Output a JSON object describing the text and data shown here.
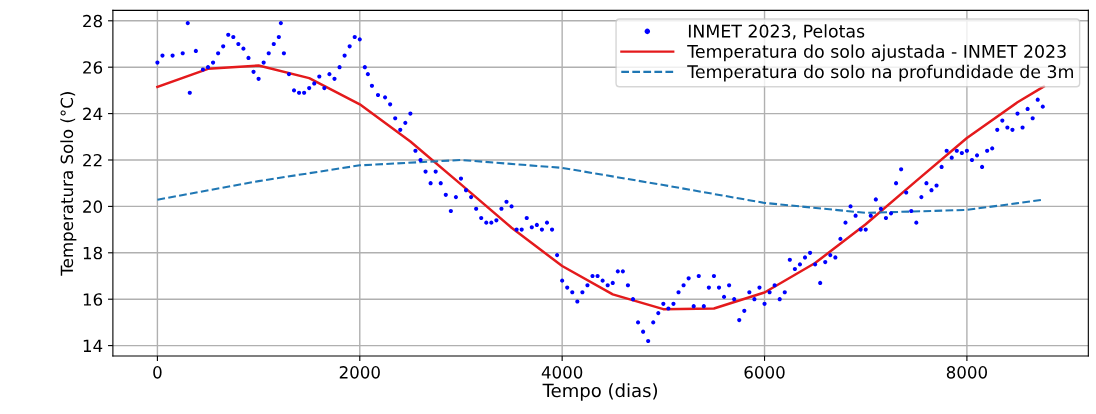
{
  "chart_data": {
    "type": "scatter",
    "xlabel": "Tempo (dias)",
    "ylabel": "Temperatura Solo (°C)",
    "xlim": [
      -440,
      9200
    ],
    "ylim": [
      13.55,
      28.45
    ],
    "xticks": [
      0,
      2000,
      4000,
      6000,
      8000
    ],
    "yticks": [
      14,
      16,
      18,
      20,
      22,
      24,
      26,
      28
    ],
    "grid": true,
    "legend": "top right",
    "series": [
      {
        "name": "INMET 2023, Pelotas",
        "color": "#0000ff",
        "marker": "circle",
        "x": [
          0,
          50,
          150,
          250,
          300,
          320,
          380,
          450,
          500,
          550,
          600,
          650,
          700,
          750,
          800,
          850,
          900,
          950,
          1000,
          1050,
          1100,
          1150,
          1200,
          1220,
          1250,
          1300,
          1350,
          1400,
          1450,
          1500,
          1550,
          1600,
          1650,
          1700,
          1750,
          1800,
          1850,
          1900,
          1950,
          2000,
          2050,
          2080,
          2120,
          2180,
          2250,
          2300,
          2350,
          2400,
          2450,
          2500,
          2550,
          2600,
          2650,
          2700,
          2750,
          2800,
          2850,
          2900,
          2950,
          3000,
          3050,
          3100,
          3150,
          3200,
          3250,
          3300,
          3350,
          3400,
          3450,
          3500,
          3550,
          3600,
          3650,
          3700,
          3750,
          3800,
          3850,
          3900,
          3950,
          4000,
          4050,
          4100,
          4150,
          4200,
          4250,
          4300,
          4350,
          4400,
          4450,
          4500,
          4550,
          4600,
          4650,
          4700,
          4750,
          4800,
          4850,
          4900,
          4950,
          5000,
          5050,
          5100,
          5150,
          5200,
          5250,
          5300,
          5350,
          5400,
          5450,
          5500,
          5550,
          5600,
          5650,
          5700,
          5750,
          5800,
          5850,
          5900,
          5950,
          6000,
          6050,
          6100,
          6150,
          6200,
          6250,
          6300,
          6350,
          6400,
          6450,
          6500,
          6550,
          6600,
          6650,
          6700,
          6750,
          6800,
          6850,
          6900,
          6950,
          7000,
          7050,
          7100,
          7150,
          7200,
          7250,
          7300,
          7350,
          7400,
          7450,
          7500,
          7550,
          7600,
          7650,
          7700,
          7750,
          7800,
          7850,
          7900,
          7950,
          8000,
          8050,
          8100,
          8150,
          8200,
          8250,
          8300,
          8350,
          8400,
          8450,
          8500,
          8550,
          8600,
          8650,
          8700,
          8750
        ],
        "values": [
          26.2,
          26.5,
          26.5,
          26.6,
          27.9,
          24.9,
          26.7,
          25.9,
          26.0,
          26.2,
          26.6,
          26.9,
          27.4,
          27.3,
          27.0,
          26.8,
          26.4,
          25.8,
          25.5,
          26.2,
          26.6,
          27.0,
          27.3,
          27.9,
          26.6,
          25.7,
          25.0,
          24.9,
          24.9,
          25.1,
          25.3,
          25.6,
          25.1,
          25.7,
          25.5,
          26.0,
          26.5,
          26.9,
          27.3,
          27.2,
          26.0,
          25.7,
          25.2,
          24.8,
          24.7,
          24.4,
          23.8,
          23.3,
          23.6,
          24.0,
          22.4,
          22.0,
          21.5,
          21.0,
          21.5,
          21.0,
          20.5,
          19.8,
          20.4,
          21.2,
          20.7,
          20.4,
          19.9,
          19.5,
          19.3,
          19.3,
          19.4,
          19.9,
          20.2,
          20.0,
          19.0,
          19.0,
          19.5,
          19.1,
          19.2,
          19.0,
          19.3,
          19.0,
          17.9,
          16.8,
          16.5,
          16.3,
          15.9,
          16.3,
          16.6,
          17.0,
          17.0,
          16.8,
          16.6,
          16.7,
          17.2,
          17.2,
          16.6,
          16.0,
          15.0,
          14.6,
          14.2,
          15.0,
          15.4,
          15.8,
          15.6,
          15.8,
          16.3,
          16.6,
          16.9,
          15.7,
          17.0,
          15.7,
          16.5,
          17.0,
          16.5,
          16.1,
          16.6,
          16.0,
          15.1,
          15.5,
          16.3,
          16.0,
          16.5,
          15.8,
          16.3,
          16.6,
          16.0,
          16.3,
          17.7,
          17.3,
          17.5,
          17.8,
          18.0,
          17.5,
          16.7,
          17.6,
          17.9,
          17.8,
          18.6,
          19.3,
          20.0,
          19.6,
          19.0,
          19.0,
          19.6,
          20.3,
          19.9,
          19.5,
          19.7,
          21.0,
          21.6,
          20.6,
          19.8,
          19.3,
          20.4,
          21.0,
          20.7,
          20.9,
          21.7,
          22.4,
          22.1,
          22.4,
          22.3,
          22.4,
          22.0,
          22.2,
          21.7,
          22.4,
          22.5,
          23.3,
          23.7,
          23.4,
          23.3,
          24.0,
          23.4,
          24.2,
          23.8,
          24.6,
          24.3
        ]
      },
      {
        "name": "Temperatura do solo ajustada - INMET 2023",
        "type": "line",
        "color": "#e41a1c",
        "line_style": "solid",
        "x": [
          0,
          500,
          1000,
          1500,
          2000,
          2500,
          3000,
          3500,
          4000,
          4500,
          5000,
          5500,
          6000,
          6500,
          7000,
          7500,
          8000,
          8500,
          8760
        ],
        "values": [
          25.15,
          25.93,
          26.07,
          25.53,
          24.4,
          22.8,
          20.95,
          19.08,
          17.43,
          16.21,
          15.57,
          15.6,
          16.29,
          17.56,
          19.23,
          21.1,
          22.95,
          24.49,
          25.17
        ]
      },
      {
        "name": "Temperatura do solo na profundidade de 3m",
        "type": "line",
        "color": "#1f77b4",
        "line_style": "dashed",
        "x": [
          0,
          1000,
          2000,
          3000,
          4000,
          5000,
          6000,
          7000,
          8000,
          8760
        ],
        "values": [
          20.29,
          21.09,
          21.77,
          22.0,
          21.66,
          20.92,
          20.15,
          19.72,
          19.85,
          20.29
        ]
      }
    ]
  }
}
